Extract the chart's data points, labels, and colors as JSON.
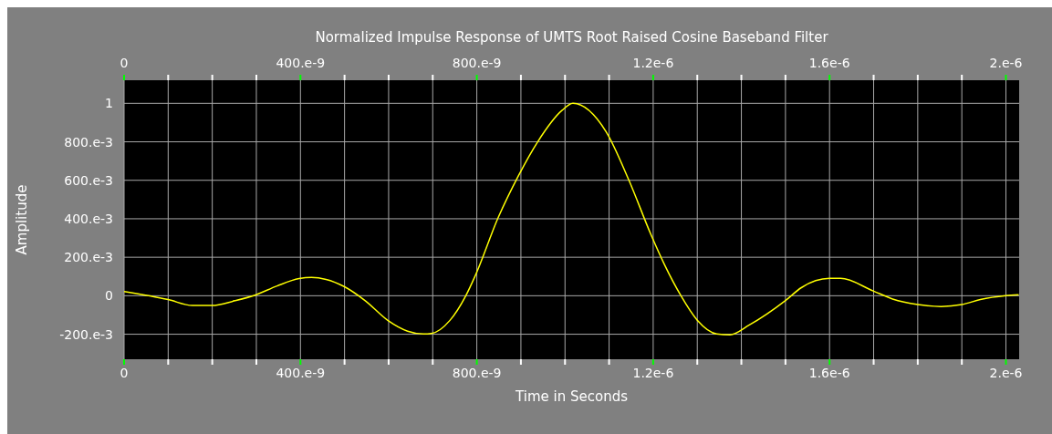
{
  "chart_data": {
    "type": "line",
    "title": "Normalized Impulse Response of UMTS Root Raised Cosine Baseband Filter",
    "xlabel": "Time in Seconds",
    "ylabel": "Amplitude",
    "x": [
      0,
      1e-07,
      1.55e-07,
      1.99e-07,
      2.51e-07,
      2.97e-07,
      3.47e-07,
      3.97e-07,
      4.25e-07,
      4.58e-07,
      4.99e-07,
      5.47e-07,
      5.98e-07,
      6.43e-07,
      6.79e-07,
      6.97e-07,
      7.39e-07,
      7.75e-07,
      7.96e-07,
      8.49e-07,
      8.94e-07,
      9.38e-07,
      9.93e-07,
      1.018e-06,
      1.093e-06,
      1.145e-06,
      1.196e-06,
      1.226e-06,
      1.263e-06,
      1.3e-06,
      1.344e-06,
      1.374e-06,
      1.418e-06,
      1.5e-06,
      1.536e-06,
      1.6e-06,
      1.625e-06,
      1.699e-06,
      1.743e-06,
      1.8e-06,
      1.853e-06,
      1.9e-06,
      1.942e-06,
      2e-06,
      2.029e-06
    ],
    "series": [
      {
        "color": "#ffff00",
        "values": [
          0.022,
          -0.02,
          -0.051,
          -0.051,
          -0.026,
          0.003,
          0.051,
          0.089,
          0.095,
          0.085,
          0.048,
          -0.026,
          -0.128,
          -0.184,
          -0.199,
          -0.196,
          -0.128,
          0,
          0.102,
          0.409,
          0.622,
          0.8,
          0.963,
          1.0,
          0.853,
          0.6,
          0.312,
          0.16,
          0,
          -0.127,
          -0.198,
          -0.203,
          -0.152,
          -0.025,
          0.042,
          0.09,
          0.09,
          0.025,
          -0.017,
          -0.046,
          -0.056,
          -0.046,
          -0.02,
          0,
          0.005
        ]
      }
    ],
    "xlim": [
      0,
      2.03e-06
    ],
    "xticks": [
      {
        "value": 0,
        "label": "0"
      },
      {
        "value": 1e-07,
        "label": null
      },
      {
        "value": 2e-07,
        "label": null
      },
      {
        "value": 3e-07,
        "label": null
      },
      {
        "value": 4e-07,
        "label": "400.e-9"
      },
      {
        "value": 5e-07,
        "label": null
      },
      {
        "value": 6e-07,
        "label": null
      },
      {
        "value": 7e-07,
        "label": null
      },
      {
        "value": 8e-07,
        "label": "800.e-9"
      },
      {
        "value": 9e-07,
        "label": null
      },
      {
        "value": 1e-06,
        "label": null
      },
      {
        "value": 1.1e-06,
        "label": null
      },
      {
        "value": 1.2e-06,
        "label": "1.2e-6"
      },
      {
        "value": 1.3e-06,
        "label": null
      },
      {
        "value": 1.4e-06,
        "label": null
      },
      {
        "value": 1.5e-06,
        "label": null
      },
      {
        "value": 1.6e-06,
        "label": "1.6e-6"
      },
      {
        "value": 1.7e-06,
        "label": null
      },
      {
        "value": 1.8e-06,
        "label": null
      },
      {
        "value": 1.9e-06,
        "label": null
      },
      {
        "value": 2e-06,
        "label": "2.e-6"
      }
    ],
    "x2lim": [
      0,
      2.03e-06
    ],
    "x2ticks": [
      {
        "value": 0,
        "label": "0"
      },
      {
        "value": 1e-07,
        "label": null
      },
      {
        "value": 2e-07,
        "label": null
      },
      {
        "value": 3e-07,
        "label": null
      },
      {
        "value": 4e-07,
        "label": "400.e-9"
      },
      {
        "value": 5e-07,
        "label": null
      },
      {
        "value": 6e-07,
        "label": null
      },
      {
        "value": 7e-07,
        "label": null
      },
      {
        "value": 8e-07,
        "label": "800.e-9"
      },
      {
        "value": 9e-07,
        "label": null
      },
      {
        "value": 1e-06,
        "label": null
      },
      {
        "value": 1.1e-06,
        "label": null
      },
      {
        "value": 1.2e-06,
        "label": "1.2e-6"
      },
      {
        "value": 1.3e-06,
        "label": null
      },
      {
        "value": 1.4e-06,
        "label": null
      },
      {
        "value": 1.5e-06,
        "label": null
      },
      {
        "value": 1.6e-06,
        "label": "1.6e-6"
      },
      {
        "value": 1.7e-06,
        "label": null
      },
      {
        "value": 1.8e-06,
        "label": null
      },
      {
        "value": 1.9e-06,
        "label": null
      },
      {
        "value": 2e-06,
        "label": "2.e-6"
      }
    ],
    "ylim": [
      -0.33,
      1.12
    ],
    "yticks": [
      {
        "value": -0.2,
        "label": "-200.e-3"
      },
      {
        "value": 0,
        "label": "0"
      },
      {
        "value": 0.2,
        "label": "200.e-3"
      },
      {
        "value": 0.4,
        "label": "400.e-3"
      },
      {
        "value": 0.6,
        "label": "600.e-3"
      },
      {
        "value": 0.8,
        "label": "800.e-3"
      },
      {
        "value": 1,
        "label": "1"
      }
    ],
    "grid": true,
    "legend": false,
    "marker": "none",
    "line_style": "solid"
  }
}
